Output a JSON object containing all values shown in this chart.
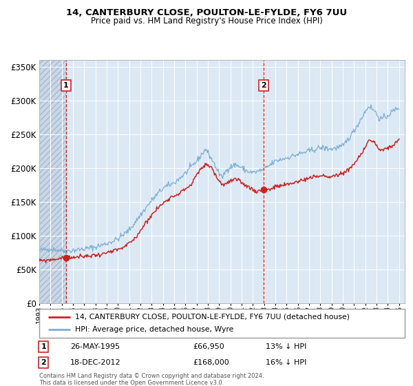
{
  "title1": "14, CANTERBURY CLOSE, POULTON-LE-FYLDE, FY6 7UU",
  "title2": "Price paid vs. HM Land Registry's House Price Index (HPI)",
  "legend_line1": "14, CANTERBURY CLOSE, POULTON-LE-FYLDE, FY6 7UU (detached house)",
  "legend_line2": "HPI: Average price, detached house, Wyre",
  "annotation1_date": "26-MAY-1995",
  "annotation1_price": "£66,950",
  "annotation1_hpi": "13% ↓ HPI",
  "annotation2_date": "18-DEC-2012",
  "annotation2_price": "£168,000",
  "annotation2_hpi": "16% ↓ HPI",
  "footnote": "Contains HM Land Registry data © Crown copyright and database right 2024.\nThis data is licensed under the Open Government Licence v3.0.",
  "sale1_year": 1995.38,
  "sale1_price": 66950,
  "sale2_year": 2012.96,
  "sale2_price": 168000,
  "hpi_color": "#7bafd4",
  "price_color": "#cc2222",
  "bg_plot_color": "#dce9f5",
  "bg_hatch_color": "#c8d8e8",
  "ylim": [
    0,
    360000
  ],
  "xlim_start": 1993.0,
  "xlim_end": 2025.5,
  "yticks": [
    0,
    50000,
    100000,
    150000,
    200000,
    250000,
    300000,
    350000
  ],
  "ytick_labels": [
    "£0",
    "£50K",
    "£100K",
    "£150K",
    "£200K",
    "£250K",
    "£300K",
    "£350K"
  ]
}
